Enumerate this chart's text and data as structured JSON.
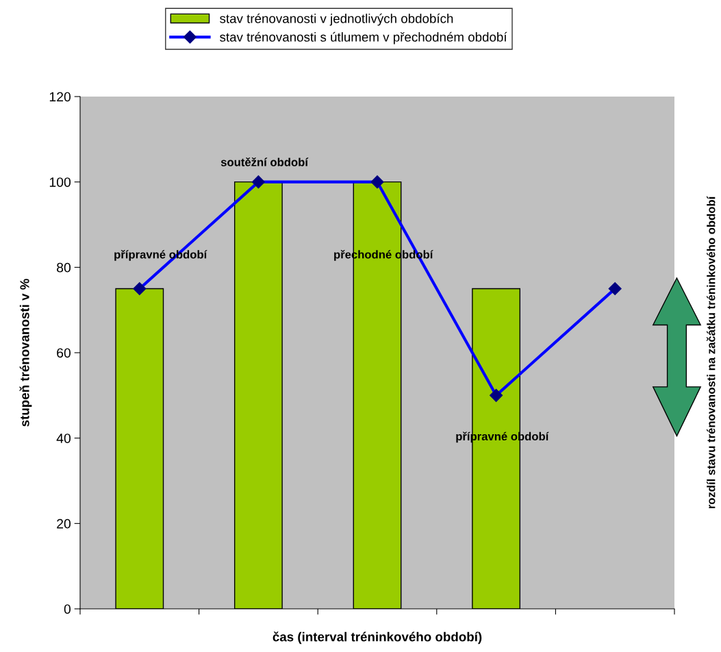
{
  "chart_data": {
    "type": "bar",
    "categories": [
      null,
      null,
      null,
      null,
      null
    ],
    "series": [
      {
        "name": "stav trénovanosti v jednotlivých obdobích",
        "color": "#99cc00",
        "values": [
          75,
          100,
          100,
          75,
          null
        ]
      },
      {
        "name": "stav trénovanosti s útlumem v přechodném období",
        "type": "line",
        "color": "#0000ff",
        "values": [
          75,
          100,
          100,
          50,
          75
        ]
      }
    ],
    "xlabel": "čas (interval tréninkového období)",
    "ylabel": "stupeň trénovanosti v %",
    "y2label": "rozdíl stavu trénovanosti na začátku tréninkového období",
    "ylim": [
      0,
      120
    ],
    "yticks": [
      0,
      20,
      40,
      60,
      80,
      100,
      120
    ],
    "annotations": [
      "přípravné období",
      "soutěžní období",
      "přechodné období",
      "přípravné období"
    ],
    "grid": false,
    "legend": "top",
    "marker": "diamond",
    "line_style": "solid",
    "tick_labels": "y"
  }
}
